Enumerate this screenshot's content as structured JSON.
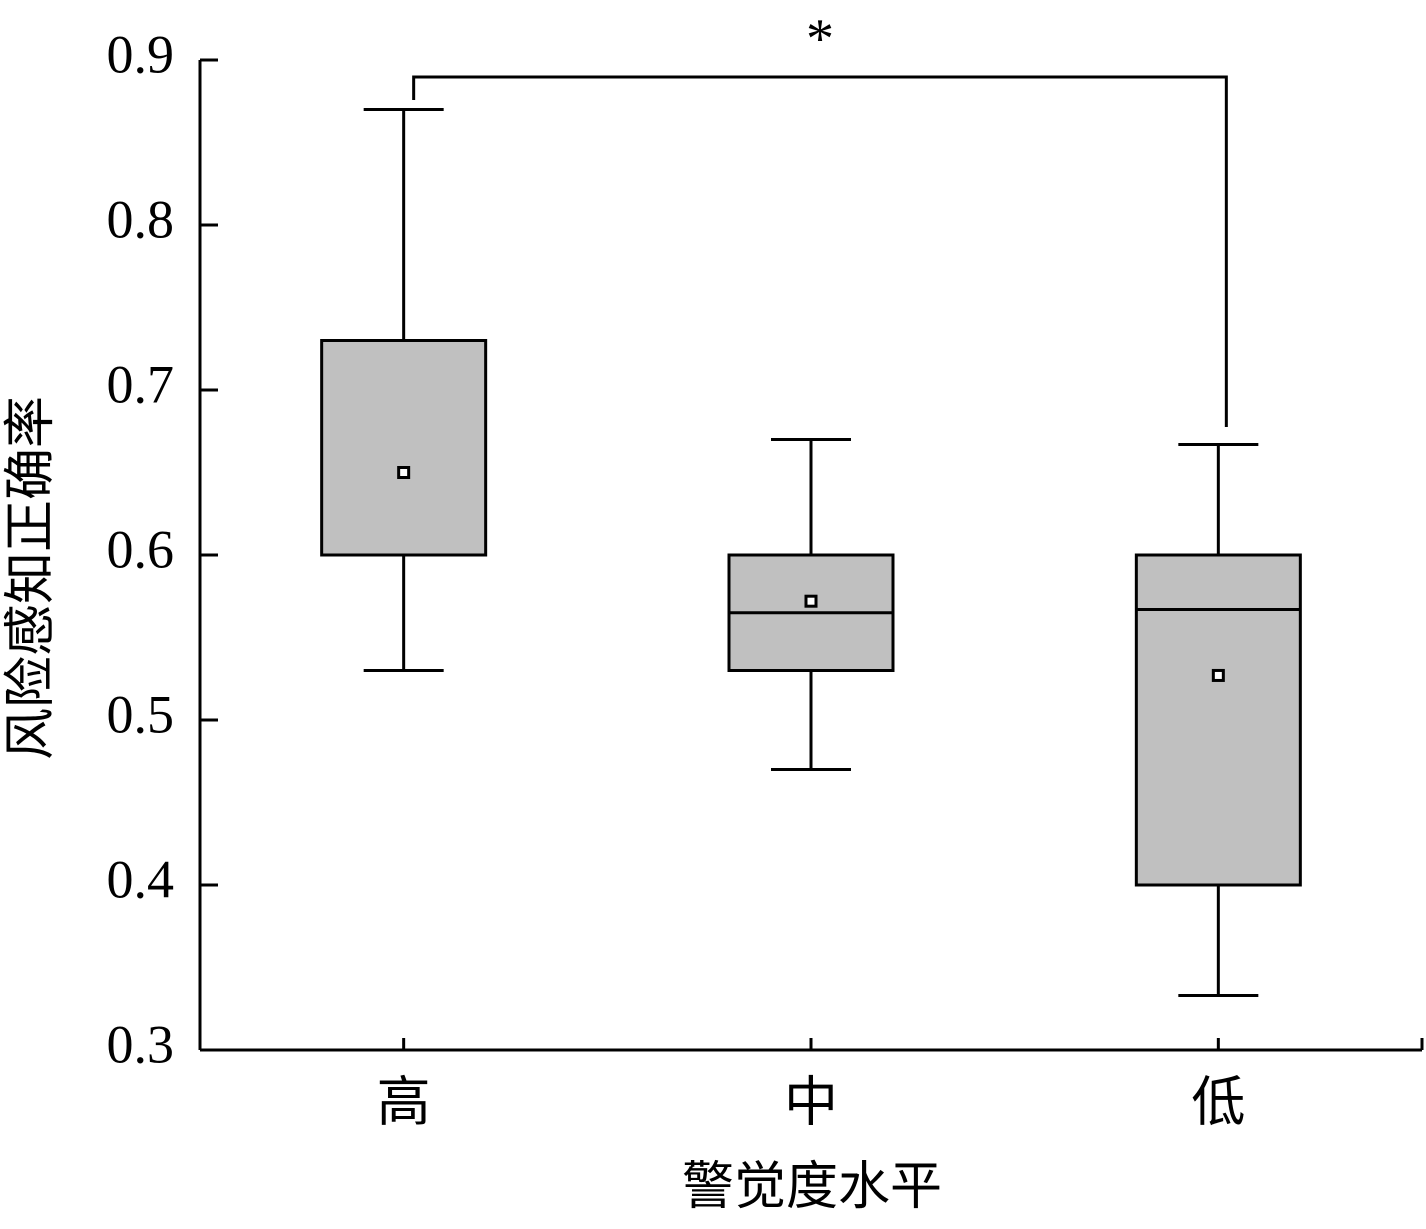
{
  "chart_data": {
    "type": "box",
    "x_label": "警觉度水平",
    "y_label": "风险感知正确率",
    "categories": [
      "高",
      "中",
      "低"
    ],
    "boxes": [
      {
        "min": 0.53,
        "q1": 0.6,
        "median": 0.6,
        "q3": 0.73,
        "max": 0.87,
        "mean": 0.65
      },
      {
        "min": 0.47,
        "q1": 0.53,
        "median": 0.565,
        "q3": 0.6,
        "max": 0.67,
        "mean": 0.572
      },
      {
        "min": 0.333,
        "q1": 0.4,
        "median": 0.567,
        "q3": 0.6,
        "max": 0.667,
        "mean": 0.527
      }
    ],
    "color": "#c0c0c0",
    "ylim": [
      0.3,
      0.9
    ],
    "yticks": [
      {
        "value": 0.3,
        "label": "0.3"
      },
      {
        "value": 0.4,
        "label": "0.4"
      },
      {
        "value": 0.5,
        "label": "0.5"
      },
      {
        "value": 0.6,
        "label": "0.6"
      },
      {
        "value": 0.7,
        "label": "0.7"
      },
      {
        "value": 0.8,
        "label": "0.8"
      },
      {
        "value": 0.9,
        "label": "0.9"
      }
    ],
    "annotation": "*"
  }
}
